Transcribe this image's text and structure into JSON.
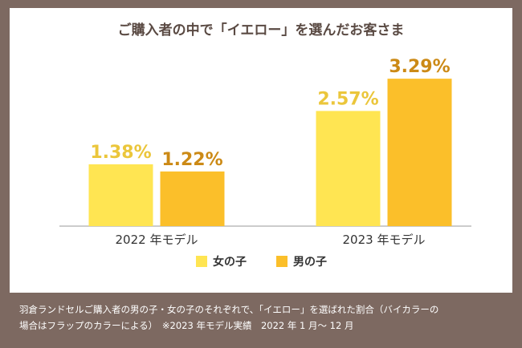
{
  "chart_data": {
    "type": "bar",
    "title": "ご購入者の中で「イエロー」を選んだお客さま",
    "categories": [
      "2022 年モデル",
      "2023 年モデル"
    ],
    "series": [
      {
        "name": "女の子",
        "values": [
          1.38,
          2.57
        ],
        "labels": [
          "1.38%",
          "2.57%"
        ],
        "color": "#ffe552"
      },
      {
        "name": "男の子",
        "values": [
          1.22,
          3.29
        ],
        "labels": [
          "1.22%",
          "3.29%"
        ],
        "color": "#fbbf2a"
      }
    ],
    "ylim": [
      0,
      3.4
    ],
    "grid": false,
    "legend": "bottom-center",
    "xlabel": "",
    "ylabel": ""
  },
  "colors": {
    "background": "#7d6961",
    "panel": "#ffffff",
    "girl_label": "#ebc63b",
    "boy_label": "#cc8a16"
  },
  "footnote": {
    "line1": "羽倉ランドセルご購入者の男の子・女の子のそれぞれで、「イエロー」を選ばれた割合（バイカラーの",
    "line2": "場合はフラップのカラーによる）　※2023 年モデル実績　2022 年 1 月～ 12 月"
  }
}
